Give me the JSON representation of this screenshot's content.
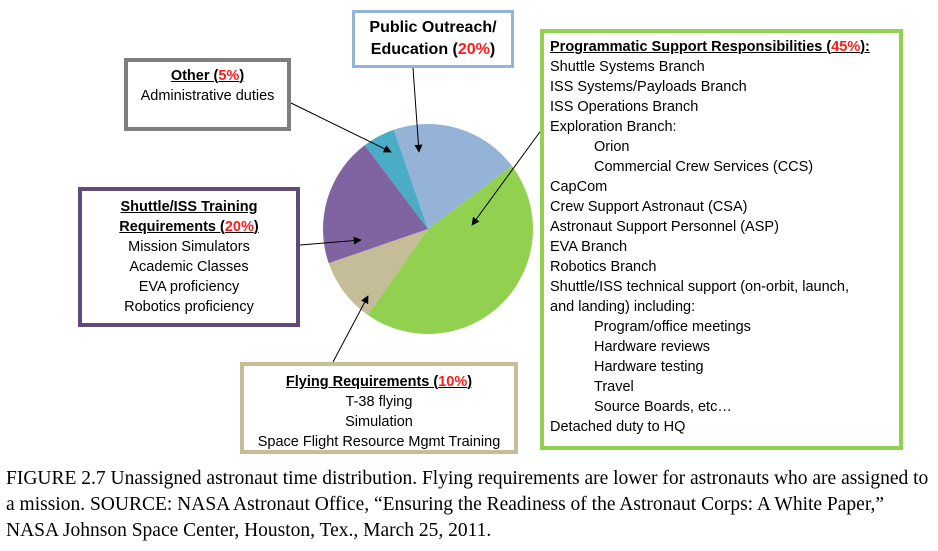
{
  "chart_data": {
    "type": "pie",
    "title": "Unassigned astronaut time distribution",
    "categories": [
      "Programmatic Support Responsibilities",
      "Flying Requirements",
      "Shuttle/ISS Training Requirements",
      "Other",
      "Public Outreach/ Education"
    ],
    "values": [
      45,
      10,
      20,
      5,
      20
    ],
    "units": "%",
    "colors": [
      "#92d050",
      "#c4bd97",
      "#8064a2",
      "#4bacc6",
      "#95b3d7"
    ],
    "legend_position": "callout boxes"
  },
  "callouts": {
    "other": {
      "title": "Other (",
      "pct": "5%",
      "close": ")",
      "items": [
        "Administrative duties"
      ]
    },
    "outreach": {
      "line1": "Public Outreach/",
      "line2": "Education (",
      "pct": "20%",
      "close": ")"
    },
    "training": {
      "title_line1": "Shuttle/ISS Training",
      "title_line2": "Requirements (",
      "pct": "20%",
      "close": ")",
      "items": [
        "Mission Simulators",
        "Academic Classes",
        "EVA proficiency",
        "Robotics proficiency"
      ]
    },
    "flying": {
      "title": "Flying Requirements (",
      "pct": "10%",
      "close": ")",
      "items": [
        "T-38 flying",
        "Simulation",
        "Space Flight Resource Mgmt Training"
      ]
    },
    "programmatic": {
      "title": "Programmatic Support Responsibilities (",
      "pct": "45%",
      "close": "):",
      "items": [
        {
          "text": "Shuttle Systems Branch",
          "indent": false
        },
        {
          "text": "ISS Systems/Payloads Branch",
          "indent": false
        },
        {
          "text": "ISS Operations Branch",
          "indent": false
        },
        {
          "text": "Exploration Branch:",
          "indent": false
        },
        {
          "text": "Orion",
          "indent": true
        },
        {
          "text": "Commercial Crew Services (CCS)",
          "indent": true
        },
        {
          "text": "CapCom",
          "indent": false
        },
        {
          "text": "Crew Support Astronaut (CSA)",
          "indent": false
        },
        {
          "text": "Astronaut Support Personnel (ASP)",
          "indent": false
        },
        {
          "text": "EVA Branch",
          "indent": false
        },
        {
          "text": "Robotics Branch",
          "indent": false
        },
        {
          "text": "Shuttle/ISS technical support (on-orbit, launch,",
          "indent": false
        },
        {
          "text": "and landing) including:",
          "indent": false
        },
        {
          "text": "Program/office meetings",
          "indent": true
        },
        {
          "text": "Hardware reviews",
          "indent": true
        },
        {
          "text": "Hardware testing",
          "indent": true
        },
        {
          "text": "Travel",
          "indent": true
        },
        {
          "text": "Source Boards, etc…",
          "indent": true
        },
        {
          "text": "Detached duty to HQ",
          "indent": false
        }
      ]
    }
  },
  "caption": {
    "text": "FIGURE 2.7  Unassigned astronaut time distribution. Flying requirements are lower for astronauts who are assigned to a mission. SOURCE: NASA Astronaut Office, “Ensuring the Readiness of the Astronaut Corps: A White Paper,” NASA Johnson Space Center, Houston, Tex., March 25, 2011."
  }
}
